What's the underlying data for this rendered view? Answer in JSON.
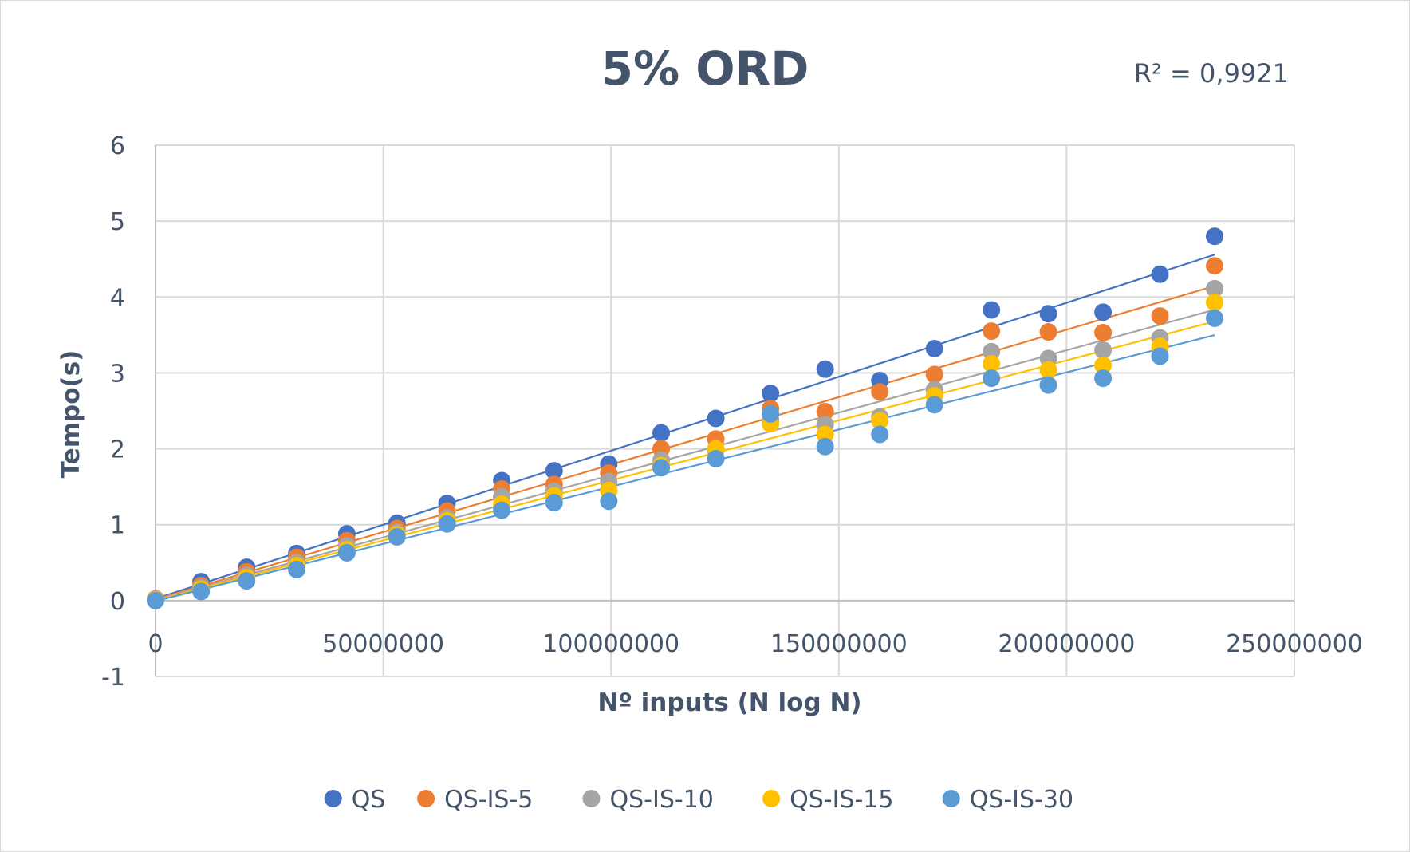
{
  "chart_data": {
    "type": "scatter",
    "title": "5% ORD",
    "annotation": "R² = 0,9921",
    "xlabel": "Nº inputs (N log N)",
    "ylabel": "Tempo(s)",
    "xlim": [
      0,
      250000000
    ],
    "ylim": [
      -1,
      6
    ],
    "x_ticks": [
      0,
      50000000,
      100000000,
      150000000,
      200000000,
      250000000
    ],
    "x_tick_labels": [
      "0",
      "50000000",
      "100000000",
      "150000000",
      "200000000",
      "250000000"
    ],
    "y_ticks": [
      -1,
      0,
      1,
      2,
      3,
      4,
      5,
      6
    ],
    "y_tick_labels": [
      "-1",
      "0",
      "1",
      "2",
      "3",
      "4",
      "5",
      "6"
    ],
    "grid": true,
    "legend_position": "bottom",
    "trendlines": "linear",
    "x": [
      0,
      10000000,
      20000000,
      31000000,
      42000000,
      53000000,
      64000000,
      76000000,
      87500000,
      99500000,
      111000000,
      123000000,
      135000000,
      147000000,
      159000000,
      171000000,
      183500000,
      196000000,
      208000000,
      220500000,
      232500000
    ],
    "series": [
      {
        "name": "QS",
        "color": "#4472c4",
        "values": [
          0.02,
          0.25,
          0.44,
          0.62,
          0.88,
          1.02,
          1.28,
          1.58,
          1.71,
          1.8,
          2.21,
          2.4,
          2.73,
          3.05,
          2.9,
          3.32,
          3.83,
          3.78,
          3.8,
          4.3,
          4.8
        ]
      },
      {
        "name": "QS-IS-5",
        "color": "#ed7d31",
        "values": [
          0.02,
          0.2,
          0.38,
          0.57,
          0.79,
          0.95,
          1.18,
          1.47,
          1.53,
          1.68,
          2.0,
          2.13,
          2.53,
          2.49,
          2.75,
          2.98,
          3.55,
          3.54,
          3.53,
          3.75,
          4.41
        ]
      },
      {
        "name": "QS-IS-10",
        "color": "#a5a5a5",
        "values": [
          0.01,
          0.17,
          0.33,
          0.5,
          0.72,
          0.9,
          1.09,
          1.37,
          1.44,
          1.57,
          1.85,
          1.98,
          2.38,
          2.32,
          2.42,
          2.78,
          3.28,
          3.19,
          3.3,
          3.46,
          4.11
        ]
      },
      {
        "name": "QS-IS-15",
        "color": "#ffc000",
        "values": [
          0.01,
          0.15,
          0.3,
          0.46,
          0.67,
          0.87,
          1.05,
          1.27,
          1.38,
          1.45,
          1.78,
          2.0,
          2.33,
          2.19,
          2.37,
          2.7,
          3.12,
          3.04,
          3.1,
          3.35,
          3.93
        ]
      },
      {
        "name": "QS-IS-30",
        "color": "#5b9bd5",
        "values": [
          0.0,
          0.12,
          0.26,
          0.41,
          0.63,
          0.84,
          1.01,
          1.19,
          1.29,
          1.31,
          1.75,
          1.87,
          2.46,
          2.03,
          2.19,
          2.58,
          2.93,
          2.84,
          2.93,
          3.22,
          3.72
        ]
      }
    ]
  }
}
